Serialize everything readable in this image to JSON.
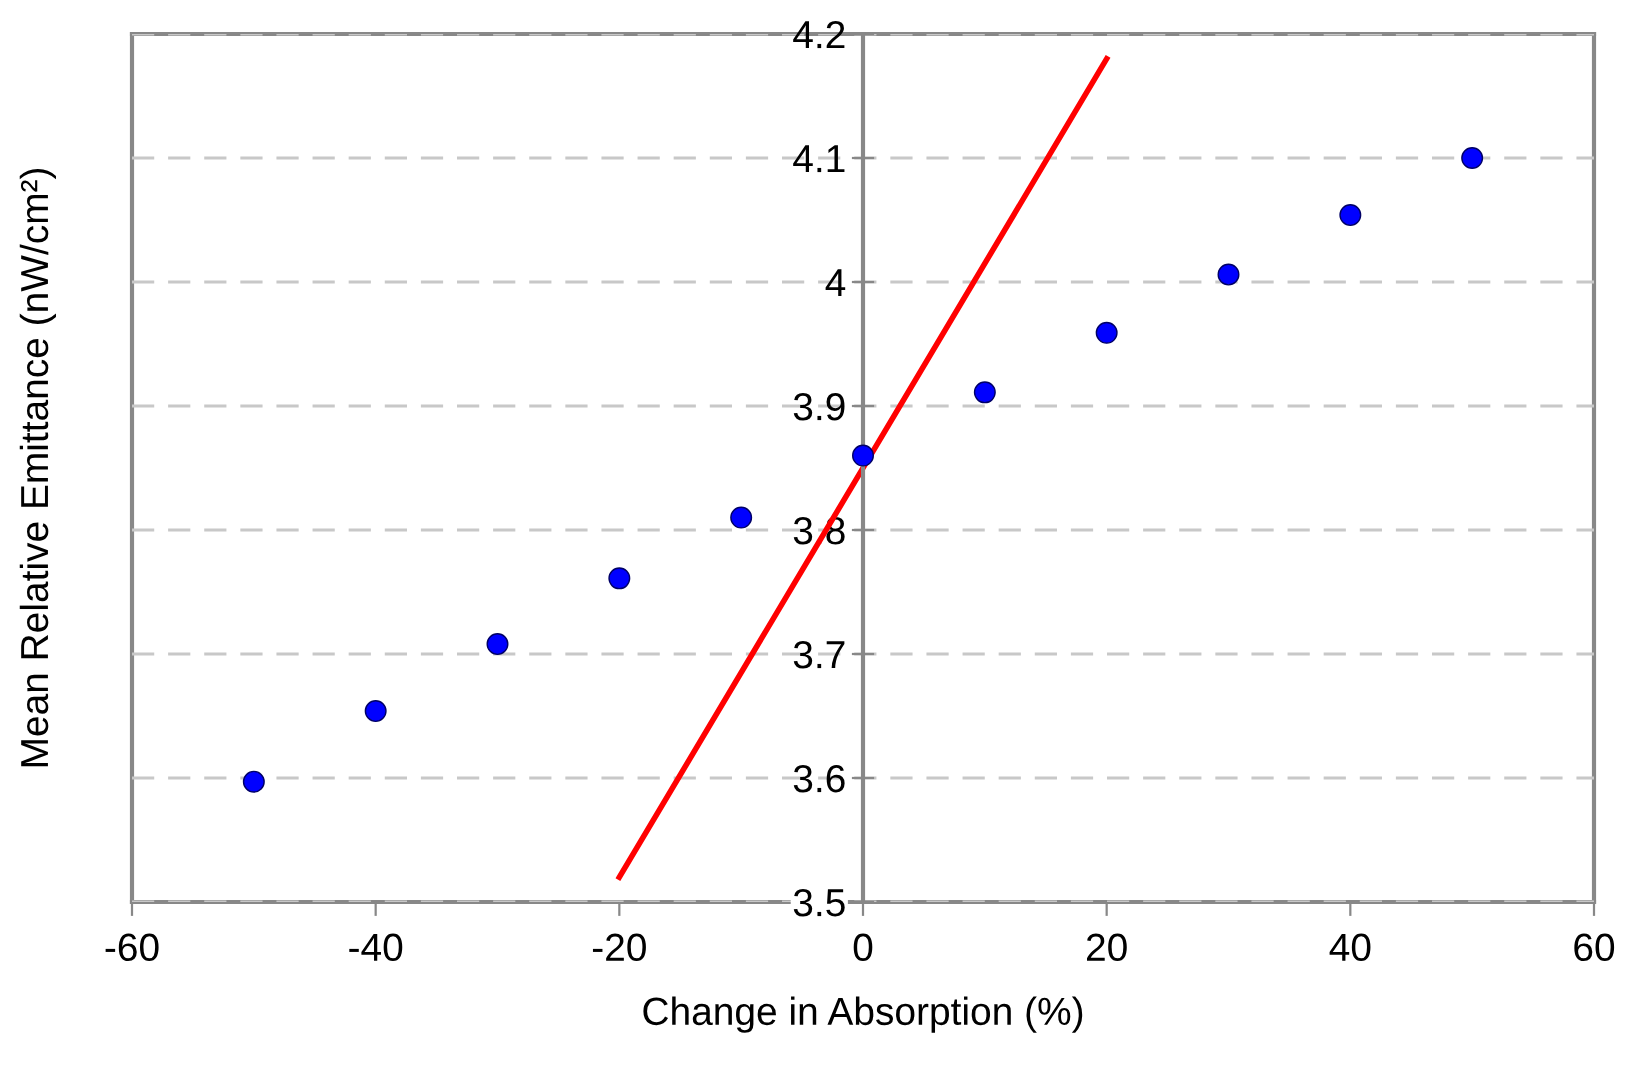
{
  "chart_data": {
    "type": "scatter",
    "xlabel": "Change in Absorption (%)",
    "ylabel": "Mean Relative Emittance (nW/cm²)",
    "x": [
      -50,
      -40,
      -30,
      -20,
      -10,
      0,
      10,
      20,
      30,
      40,
      50
    ],
    "series": [
      {
        "color": "#0000ff",
        "values": [
          3.597,
          3.654,
          3.708,
          3.761,
          3.81,
          3.86,
          3.911,
          3.959,
          4.006,
          4.054,
          4.1
        ],
        "marker": "circle"
      },
      {
        "type": "line",
        "color": "#ff0000",
        "x": [
          -20,
          20
        ],
        "values": [
          3.52,
          4.18
        ],
        "marker": "none",
        "line_style": "solid"
      }
    ],
    "xlim": [
      -60,
      60
    ],
    "xticks": [
      -60,
      -40,
      -20,
      0,
      20,
      40,
      60
    ],
    "ylim": [
      3.5,
      4.2
    ],
    "yticks": [
      3.5,
      3.6,
      3.7,
      3.8,
      3.9,
      {
        "value": 4.0,
        "label": "4"
      },
      4.1,
      4.2
    ],
    "grid": "y"
  }
}
